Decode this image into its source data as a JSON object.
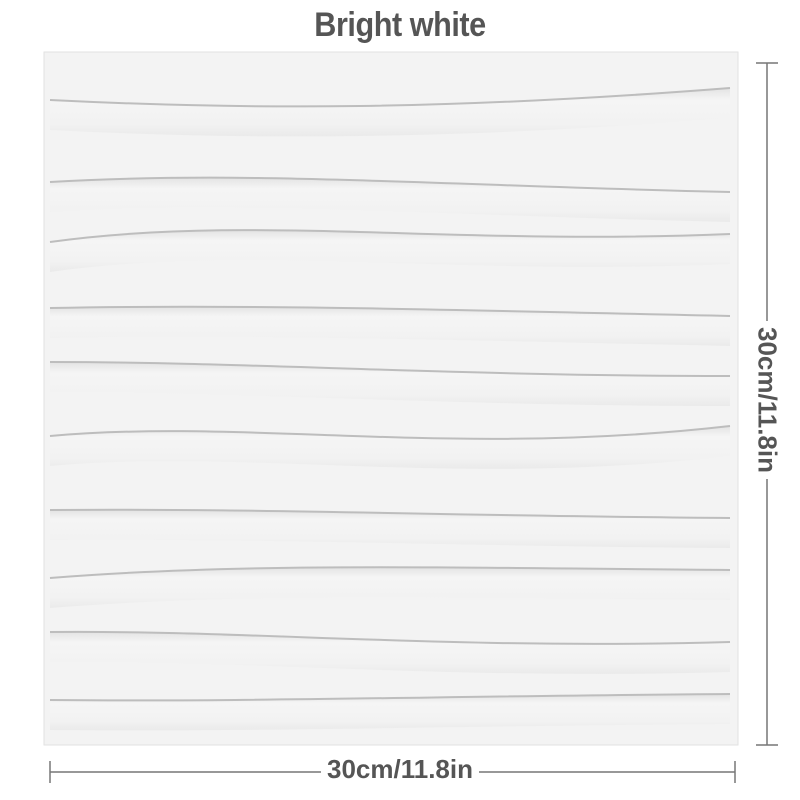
{
  "title": "Bright white",
  "dimensions": {
    "height_label": "30cm/11.8in",
    "width_label": "30cm/11.8in"
  },
  "colors": {
    "panel": "#f2f2f2",
    "groove": "#bdbdbd",
    "text": "#555555"
  }
}
